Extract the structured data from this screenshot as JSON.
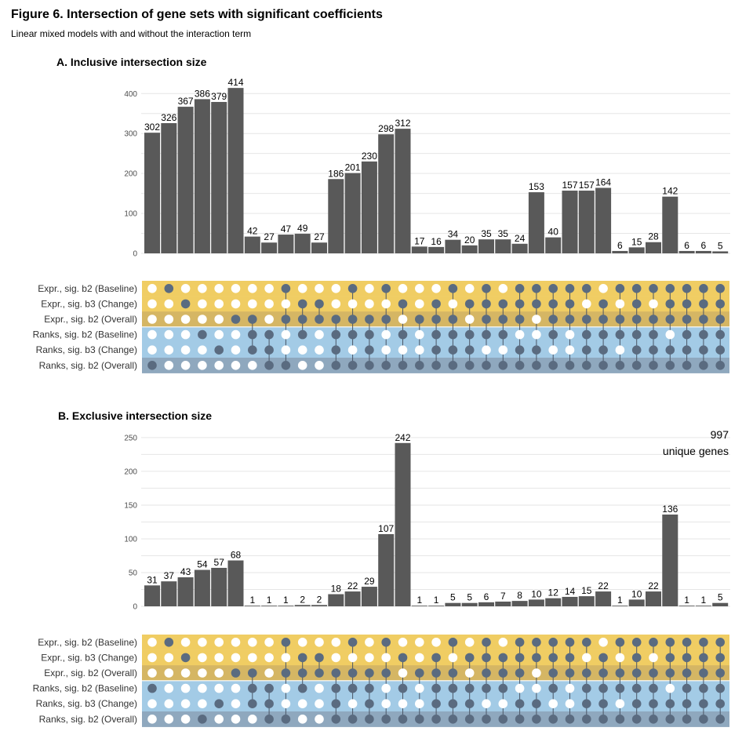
{
  "figure": {
    "title": "Figure 6. Intersection of gene sets with significant coefficients",
    "subtitle": "Linear mixed models with and without the interaction term"
  },
  "colors": {
    "bar": "#595959",
    "dot_on": "#5a6b80",
    "dot_off": "#ffffff",
    "expr_band": "#f0cd63",
    "expr_band_dark": "#d5b664",
    "ranks_band": "#a3cbe6",
    "ranks_band_dark": "#8fa8be",
    "grid": "#e6e6e6"
  },
  "chart_data": [
    {
      "type": "bar",
      "title": "A. Inclusive intersection size",
      "ylim": [
        0,
        430
      ],
      "yticks": [
        0,
        100,
        200,
        300,
        400
      ],
      "grid": true,
      "sets": [
        "Expr., sig. b2 (Baseline)",
        "Expr., sig. b3 (Change)",
        "Expr., sig. b2 (Overall)",
        "Ranks, sig. b2 (Baseline)",
        "Ranks, sig. b3 (Change)",
        "Ranks, sig. b2 (Overall)"
      ],
      "values": [
        302,
        326,
        367,
        386,
        379,
        414,
        42,
        27,
        47,
        49,
        27,
        186,
        201,
        230,
        298,
        312,
        17,
        16,
        34,
        20,
        35,
        35,
        24,
        153,
        40,
        157,
        157,
        164,
        6,
        15,
        28,
        142,
        6,
        6,
        5
      ],
      "matrix": [
        "000001",
        "100000",
        "010000",
        "000100",
        "000010",
        "001000",
        "001110",
        "000111",
        "101001",
        "011100",
        "011000",
        "001111",
        "101101",
        "001111",
        "101001",
        "010101",
        "001001",
        "011111",
        "101111",
        "010111",
        "111101",
        "011101",
        "111011",
        "110011",
        "111101",
        "111001",
        "101111",
        "011111",
        "101101",
        "111111",
        "101111",
        "111011",
        "111111",
        "111111",
        "111111"
      ]
    },
    {
      "type": "bar",
      "title": "B. Exclusive intersection size",
      "ylim": [
        0,
        265
      ],
      "yticks": [
        0,
        50,
        100,
        150,
        200,
        250
      ],
      "grid": true,
      "annotation": {
        "value": "997",
        "label": "unique genes"
      },
      "sets": [
        "Expr., sig. b2 (Baseline)",
        "Expr., sig. b3 (Change)",
        "Expr., sig. b2 (Overall)",
        "Ranks, sig. b2 (Baseline)",
        "Ranks, sig. b3 (Change)",
        "Ranks, sig. b2 (Overall)"
      ],
      "values": [
        31,
        37,
        43,
        54,
        57,
        68,
        1,
        1,
        1,
        2,
        2,
        18,
        22,
        29,
        107,
        242,
        1,
        1,
        5,
        5,
        6,
        7,
        8,
        10,
        12,
        14,
        15,
        22,
        1,
        10,
        22,
        136,
        1,
        1,
        5
      ],
      "matrix": [
        "000100",
        "100000",
        "010000",
        "000001",
        "000010",
        "001000",
        "001110",
        "000111",
        "101001",
        "011100",
        "011000",
        "001111",
        "101101",
        "001111",
        "101001",
        "010101",
        "001001",
        "011111",
        "101111",
        "010111",
        "111101",
        "011101",
        "111011",
        "110011",
        "111101",
        "111001",
        "101111",
        "011111",
        "101101",
        "111111",
        "101111",
        "111011",
        "111111",
        "111111",
        "111111"
      ]
    }
  ]
}
